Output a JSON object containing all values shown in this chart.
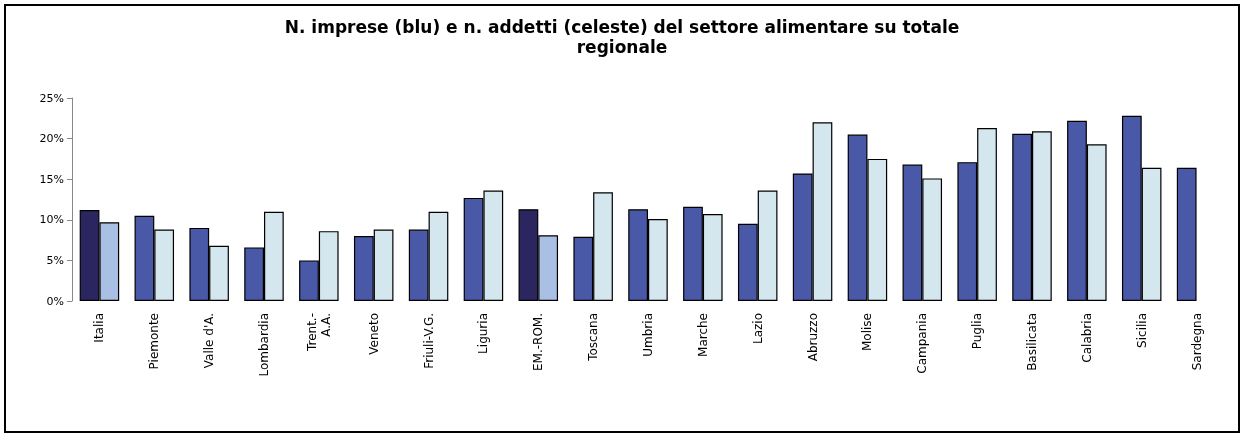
{
  "chart_data": {
    "type": "bar",
    "title": "N. imprese (blu) e n. addetti (celeste) del settore alimentare su totale\nregionale",
    "categories": [
      "Italia",
      "Piemonte",
      "Valle d'A.",
      "Lombardia",
      "Trent.-\nA.A.",
      "Veneto",
      "Friuli-V.G.",
      "Liguria",
      "EM.-ROM.",
      "Toscana",
      "Umbria",
      "Marche",
      "Lazio",
      "Abruzzo",
      "Molise",
      "Campania",
      "Puglia",
      "Basilicata",
      "Calabria",
      "Sicilia",
      "Sardegna"
    ],
    "series": [
      {
        "colors": [
          "#2b2660",
          "#4a58a8",
          "#4a58a8",
          "#4a58a8",
          "#4a58a8",
          "#4a58a8",
          "#4a58a8",
          "#4a58a8",
          "#2b2660",
          "#4a58a8",
          "#4a58a8",
          "#4a58a8",
          "#4a58a8",
          "#4a58a8",
          "#4a58a8",
          "#4a58a8",
          "#4a58a8",
          "#4a58a8",
          "#4a58a8",
          "#4a58a8",
          "#4a58a8"
        ],
        "values": [
          11.2,
          10.5,
          9.0,
          6.6,
          5.0,
          8.0,
          8.8,
          12.7,
          11.3,
          7.9,
          11.3,
          11.6,
          9.5,
          15.7,
          20.5,
          16.8,
          17.1,
          20.6,
          22.2,
          22.8,
          16.4
        ]
      },
      {
        "colors": [
          "#a9bfe3",
          "#d4e6ee",
          "#d4e6ee",
          "#d4e6ee",
          "#d4e6ee",
          "#d4e6ee",
          "#d4e6ee",
          "#d4e6ee",
          "#a9bfe3",
          "#d4e6ee",
          "#d4e6ee",
          "#d4e6ee",
          "#d4e6ee",
          "#d4e6ee",
          "#d4e6ee",
          "#d4e6ee",
          "#d4e6ee",
          "#d4e6ee",
          "#d4e6ee",
          "#d4e6ee",
          "#d4e6ee"
        ],
        "values": [
          9.7,
          8.8,
          6.8,
          11.0,
          8.6,
          8.8,
          11.0,
          13.6,
          8.1,
          13.4,
          10.1,
          10.7,
          13.6,
          22.0,
          17.5,
          15.1,
          21.3,
          20.9,
          19.3,
          16.4,
          null
        ]
      }
    ],
    "ylim": [
      0,
      25
    ],
    "yticks": [
      {
        "value": 0,
        "label": "0%"
      },
      {
        "value": 5,
        "label": "5%"
      },
      {
        "value": 10,
        "label": "10%"
      },
      {
        "value": 15,
        "label": "15%"
      },
      {
        "value": 20,
        "label": "20%"
      },
      {
        "value": 25,
        "label": "25%"
      }
    ],
    "grid": false
  }
}
